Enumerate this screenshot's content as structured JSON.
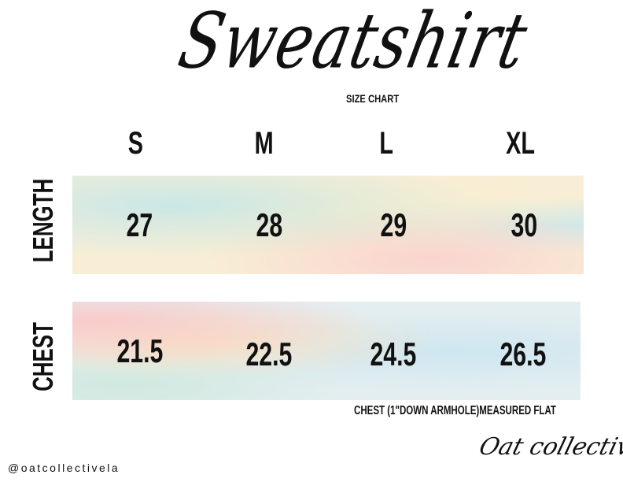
{
  "title": "Sweatshirt",
  "subtitle": "SIZE CHART",
  "sizes": [
    "S",
    "M",
    "L",
    "XL"
  ],
  "rows": [
    {
      "label": "LENGTH",
      "values": [
        "27",
        "28",
        "29",
        "30"
      ]
    },
    {
      "label": "CHEST",
      "values": [
        "21.5",
        "22.5",
        "24.5",
        "26.5"
      ]
    }
  ],
  "note": "CHEST (1\"DOWN ARMHOLE)MEASURED FLAT",
  "social_handle": "@oatcollectivela",
  "brand_logo": "Oat collective",
  "colors": {
    "pastel_yellow": "#f8eed6",
    "pastel_blue": "#cde6f0",
    "pastel_pink": "#fac8c8"
  }
}
